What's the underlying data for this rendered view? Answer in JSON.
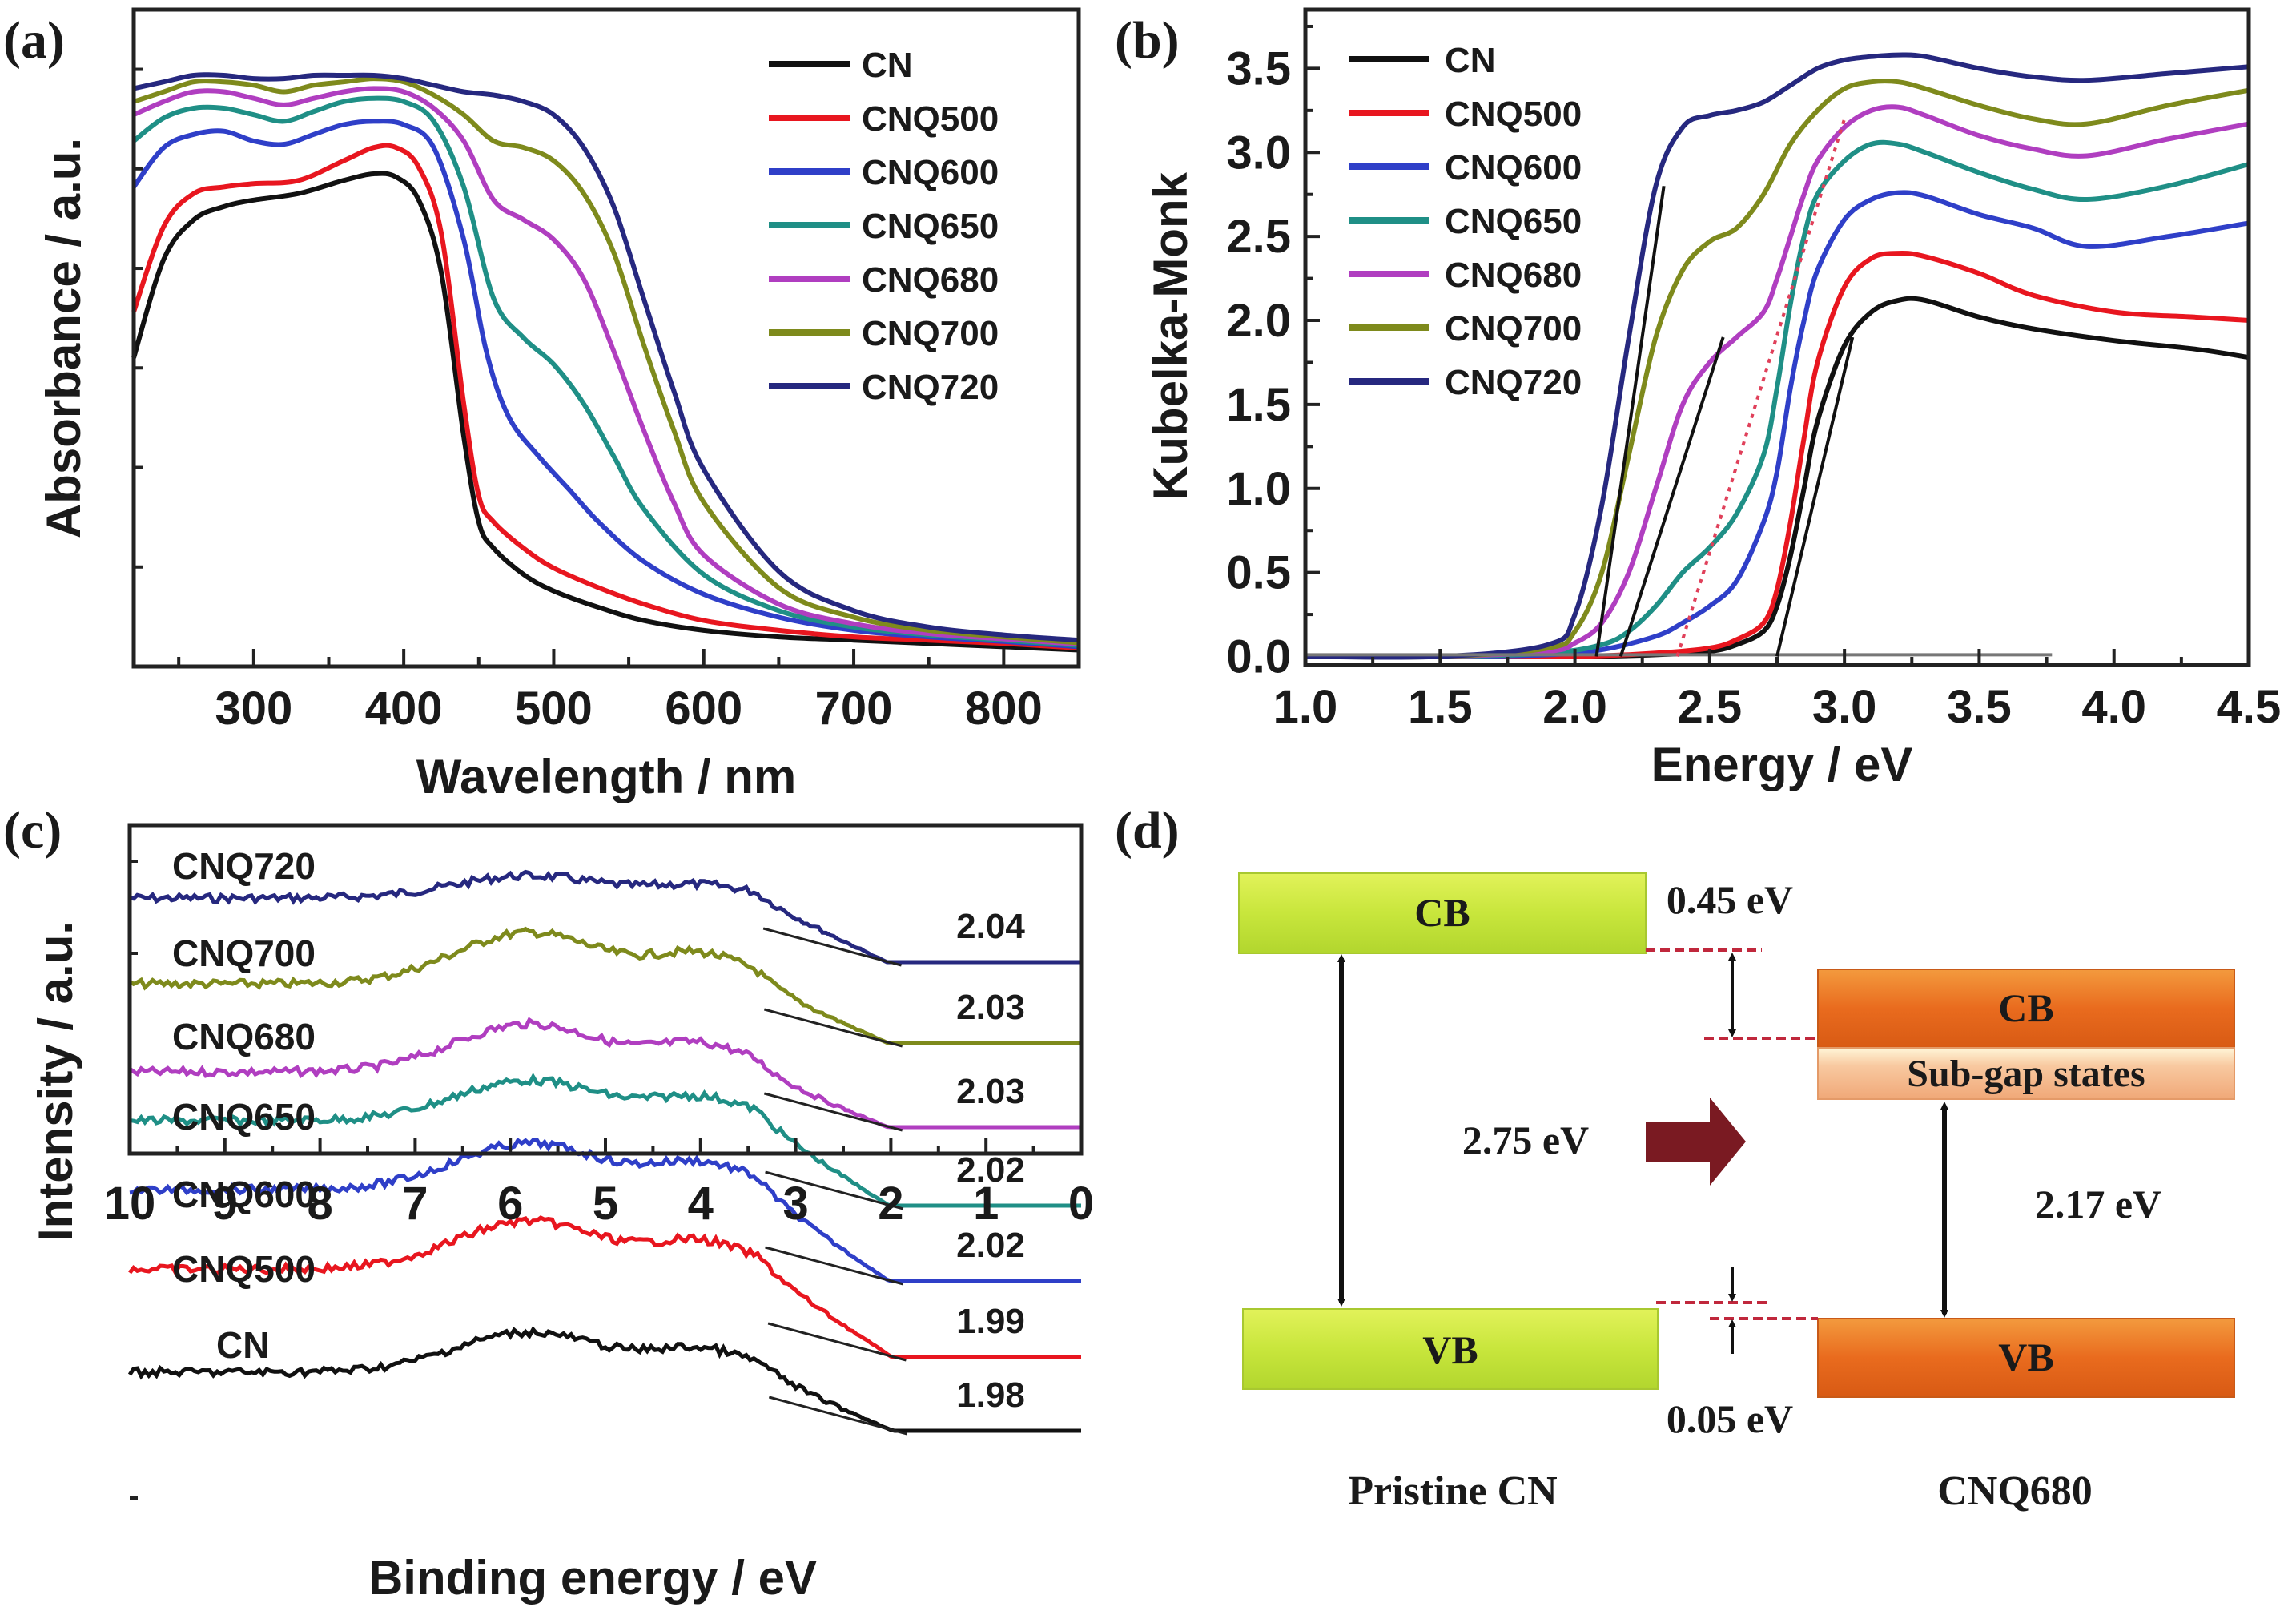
{
  "panels": {
    "a": "(a)",
    "b": "(b)",
    "c": "(c)",
    "d": "(d)"
  },
  "series_colors": {
    "CN": "#111111",
    "CNQ500": "#e8161f",
    "CNQ600": "#2f3fc8",
    "CNQ650": "#1f8f86",
    "CNQ680": "#b03ec0",
    "CNQ700": "#7e8a1c",
    "CNQ720": "#26287f"
  },
  "chart_data": [
    {
      "id": "a",
      "type": "line",
      "title": "",
      "xlabel": "Wavelength / nm",
      "ylabel": "Absorbance / a.u.",
      "xlim": [
        220,
        850
      ],
      "ylim": [
        0,
        1.0
      ],
      "xticks": [
        300,
        400,
        500,
        600,
        700,
        800
      ],
      "show_ytick_labels": false,
      "legend_position": "top-right",
      "legend": [
        "CN",
        "CNQ500",
        "CNQ600",
        "CNQ650",
        "CNQ680",
        "CNQ700",
        "CNQ720"
      ],
      "series": [
        {
          "name": "CN",
          "x": [
            220,
            240,
            260,
            280,
            300,
            330,
            360,
            380,
            395,
            410,
            425,
            440,
            450,
            460,
            480,
            500,
            530,
            560,
            600,
            650,
            700,
            750,
            800,
            850
          ],
          "y": [
            0.47,
            0.62,
            0.68,
            0.7,
            0.71,
            0.72,
            0.74,
            0.75,
            0.745,
            0.71,
            0.6,
            0.35,
            0.22,
            0.18,
            0.14,
            0.115,
            0.09,
            0.07,
            0.055,
            0.045,
            0.04,
            0.035,
            0.03,
            0.025
          ]
        },
        {
          "name": "CNQ500",
          "x": [
            220,
            240,
            260,
            280,
            300,
            330,
            360,
            380,
            395,
            410,
            425,
            440,
            450,
            460,
            480,
            500,
            530,
            560,
            600,
            650,
            700,
            750,
            800,
            850
          ],
          "y": [
            0.54,
            0.67,
            0.72,
            0.73,
            0.735,
            0.74,
            0.77,
            0.79,
            0.79,
            0.76,
            0.66,
            0.4,
            0.26,
            0.22,
            0.18,
            0.15,
            0.12,
            0.095,
            0.07,
            0.055,
            0.045,
            0.04,
            0.035,
            0.028
          ]
        },
        {
          "name": "CNQ600",
          "x": [
            220,
            240,
            260,
            280,
            300,
            320,
            340,
            360,
            380,
            400,
            420,
            440,
            455,
            470,
            490,
            510,
            530,
            560,
            600,
            650,
            700,
            750,
            800,
            850
          ],
          "y": [
            0.73,
            0.79,
            0.81,
            0.815,
            0.8,
            0.795,
            0.81,
            0.825,
            0.83,
            0.825,
            0.79,
            0.65,
            0.48,
            0.38,
            0.32,
            0.27,
            0.22,
            0.16,
            0.11,
            0.075,
            0.055,
            0.045,
            0.038,
            0.03
          ]
        },
        {
          "name": "CNQ650",
          "x": [
            220,
            240,
            260,
            280,
            300,
            320,
            340,
            360,
            380,
            400,
            420,
            440,
            460,
            480,
            500,
            520,
            540,
            560,
            600,
            650,
            700,
            750,
            800,
            850
          ],
          "y": [
            0.8,
            0.835,
            0.85,
            0.85,
            0.84,
            0.83,
            0.845,
            0.86,
            0.865,
            0.86,
            0.83,
            0.73,
            0.56,
            0.5,
            0.46,
            0.4,
            0.32,
            0.24,
            0.14,
            0.085,
            0.06,
            0.048,
            0.04,
            0.032
          ]
        },
        {
          "name": "CNQ680",
          "x": [
            220,
            240,
            260,
            280,
            300,
            320,
            340,
            360,
            380,
            400,
            420,
            440,
            460,
            480,
            500,
            520,
            540,
            560,
            580,
            600,
            650,
            700,
            750,
            800,
            850
          ],
          "y": [
            0.84,
            0.86,
            0.875,
            0.875,
            0.865,
            0.855,
            0.865,
            0.875,
            0.88,
            0.875,
            0.85,
            0.8,
            0.71,
            0.68,
            0.65,
            0.59,
            0.48,
            0.36,
            0.25,
            0.17,
            0.095,
            0.065,
            0.05,
            0.042,
            0.034
          ]
        },
        {
          "name": "CNQ700",
          "x": [
            220,
            240,
            260,
            280,
            300,
            320,
            340,
            360,
            380,
            400,
            420,
            440,
            460,
            480,
            500,
            520,
            540,
            560,
            580,
            600,
            650,
            700,
            750,
            800,
            850
          ],
          "y": [
            0.86,
            0.875,
            0.89,
            0.89,
            0.885,
            0.875,
            0.885,
            0.89,
            0.895,
            0.89,
            0.87,
            0.84,
            0.8,
            0.79,
            0.77,
            0.72,
            0.63,
            0.49,
            0.36,
            0.25,
            0.12,
            0.075,
            0.055,
            0.045,
            0.036
          ]
        },
        {
          "name": "CNQ720",
          "x": [
            220,
            240,
            260,
            280,
            300,
            320,
            340,
            360,
            380,
            400,
            420,
            440,
            460,
            480,
            500,
            520,
            540,
            560,
            580,
            600,
            650,
            700,
            750,
            800,
            850
          ],
          "y": [
            0.88,
            0.89,
            0.9,
            0.9,
            0.895,
            0.895,
            0.9,
            0.9,
            0.9,
            0.895,
            0.885,
            0.875,
            0.87,
            0.86,
            0.84,
            0.79,
            0.7,
            0.56,
            0.42,
            0.3,
            0.145,
            0.085,
            0.06,
            0.048,
            0.04
          ]
        }
      ]
    },
    {
      "id": "b",
      "type": "line",
      "title": "",
      "xlabel": "Energy / eV",
      "ylabel": "Kubelka-Monk",
      "xlim": [
        1.0,
        4.5
      ],
      "ylim": [
        -0.05,
        3.85
      ],
      "xticks": [
        "1.0",
        "1.5",
        "2.0",
        "2.5",
        "3.0",
        "3.5",
        "4.0",
        "4.5"
      ],
      "yticks": [
        "0.0",
        "0.5",
        "1.0",
        "1.5",
        "2.0",
        "2.5",
        "3.0",
        "3.5"
      ],
      "legend_position": "top-left",
      "legend": [
        "CN",
        "CNQ500",
        "CNQ600",
        "CNQ650",
        "CNQ680",
        "CNQ700",
        "CNQ720"
      ],
      "series": [
        {
          "name": "CN",
          "x": [
            1.0,
            1.5,
            2.0,
            2.3,
            2.5,
            2.6,
            2.7,
            2.75,
            2.8,
            2.85,
            2.9,
            3.0,
            3.1,
            3.2,
            3.3,
            3.5,
            3.7,
            4.0,
            4.3,
            4.5
          ],
          "y": [
            0.0,
            0.0,
            0.0,
            0.01,
            0.03,
            0.07,
            0.15,
            0.3,
            0.6,
            1.0,
            1.4,
            1.85,
            2.05,
            2.12,
            2.12,
            2.02,
            1.95,
            1.88,
            1.83,
            1.78
          ]
        },
        {
          "name": "CNQ500",
          "x": [
            1.0,
            1.5,
            2.0,
            2.3,
            2.5,
            2.6,
            2.7,
            2.75,
            2.8,
            2.85,
            2.9,
            3.0,
            3.1,
            3.2,
            3.3,
            3.5,
            3.7,
            4.0,
            4.3,
            4.5
          ],
          "y": [
            0.0,
            0.0,
            0.0,
            0.02,
            0.05,
            0.1,
            0.2,
            0.4,
            0.8,
            1.3,
            1.75,
            2.2,
            2.37,
            2.4,
            2.38,
            2.28,
            2.15,
            2.05,
            2.02,
            2.0
          ]
        },
        {
          "name": "CNQ600",
          "x": [
            1.0,
            1.5,
            1.9,
            2.1,
            2.3,
            2.4,
            2.5,
            2.6,
            2.7,
            2.75,
            2.8,
            2.85,
            2.9,
            3.0,
            3.1,
            3.2,
            3.3,
            3.5,
            3.7,
            3.9,
            4.2,
            4.5
          ],
          "y": [
            0.0,
            0.0,
            0.01,
            0.04,
            0.12,
            0.2,
            0.3,
            0.45,
            0.8,
            1.1,
            1.6,
            2.0,
            2.3,
            2.6,
            2.72,
            2.76,
            2.74,
            2.63,
            2.55,
            2.44,
            2.5,
            2.58
          ]
        },
        {
          "name": "CNQ650",
          "x": [
            1.0,
            1.5,
            1.9,
            2.1,
            2.2,
            2.3,
            2.4,
            2.5,
            2.6,
            2.7,
            2.75,
            2.8,
            2.85,
            2.9,
            3.0,
            3.1,
            3.2,
            3.3,
            3.5,
            3.7,
            3.9,
            4.2,
            4.5
          ],
          "y": [
            0.0,
            0.0,
            0.02,
            0.07,
            0.15,
            0.3,
            0.5,
            0.65,
            0.85,
            1.2,
            1.6,
            2.1,
            2.5,
            2.75,
            2.95,
            3.05,
            3.05,
            3.0,
            2.88,
            2.78,
            2.72,
            2.8,
            2.93
          ]
        },
        {
          "name": "CNQ680",
          "x": [
            1.0,
            1.5,
            1.9,
            2.0,
            2.1,
            2.2,
            2.3,
            2.4,
            2.5,
            2.6,
            2.7,
            2.75,
            2.8,
            2.85,
            2.9,
            3.0,
            3.1,
            3.2,
            3.3,
            3.5,
            3.7,
            3.9,
            4.2,
            4.5
          ],
          "y": [
            0.0,
            0.0,
            0.03,
            0.08,
            0.2,
            0.5,
            1.0,
            1.5,
            1.75,
            1.9,
            2.05,
            2.25,
            2.5,
            2.75,
            2.95,
            3.15,
            3.25,
            3.27,
            3.22,
            3.1,
            3.02,
            2.98,
            3.08,
            3.17
          ]
        },
        {
          "name": "CNQ700",
          "x": [
            1.0,
            1.5,
            1.9,
            2.0,
            2.1,
            2.2,
            2.3,
            2.4,
            2.5,
            2.6,
            2.7,
            2.8,
            2.9,
            3.0,
            3.1,
            3.2,
            3.3,
            3.5,
            3.7,
            3.9,
            4.2,
            4.5
          ],
          "y": [
            0.0,
            0.0,
            0.05,
            0.15,
            0.5,
            1.2,
            1.9,
            2.3,
            2.47,
            2.55,
            2.75,
            3.05,
            3.25,
            3.38,
            3.42,
            3.42,
            3.38,
            3.28,
            3.2,
            3.17,
            3.28,
            3.37
          ]
        },
        {
          "name": "CNQ720",
          "x": [
            1.0,
            1.5,
            1.9,
            2.0,
            2.1,
            2.2,
            2.3,
            2.4,
            2.5,
            2.6,
            2.7,
            2.8,
            2.9,
            3.0,
            3.1,
            3.2,
            3.3,
            3.5,
            3.7,
            3.9,
            4.2,
            4.5
          ],
          "y": [
            0.0,
            0.0,
            0.07,
            0.25,
            0.9,
            1.9,
            2.8,
            3.15,
            3.22,
            3.25,
            3.3,
            3.4,
            3.5,
            3.55,
            3.57,
            3.58,
            3.57,
            3.5,
            3.45,
            3.43,
            3.47,
            3.51
          ]
        }
      ],
      "annotations": {
        "baseline": {
          "x": [
            1.0,
            3.77
          ],
          "y": [
            0.01,
            0.01
          ]
        },
        "tangent_lines": [
          {
            "x": [
              2.08,
              2.33
            ],
            "y": [
              0.0,
              2.8
            ]
          },
          {
            "x": [
              2.17,
              2.55
            ],
            "y": [
              0.0,
              1.9
            ]
          },
          {
            "x": [
              2.75,
              3.03
            ],
            "y": [
              0.0,
              1.9
            ]
          }
        ],
        "dotted_tangent": {
          "x": [
            2.38,
            3.0
          ],
          "y": [
            0.0,
            3.2
          ],
          "color": "#e0405a"
        }
      }
    },
    {
      "id": "c",
      "type": "line",
      "title": "",
      "xlabel": "Binding energy / eV",
      "ylabel": "Intensity / a.u.",
      "xlim": [
        10,
        0
      ],
      "xticks": [
        "10",
        "9",
        "8",
        "7",
        "6",
        "5",
        "4",
        "3",
        "2",
        "1",
        "0"
      ],
      "show_ytick_labels": false,
      "series_labels": [
        "CNQ720",
        "CNQ700",
        "CNQ680",
        "CNQ650",
        "CNQ600",
        "CNQ500",
        "CN"
      ],
      "vb_edge_values": [
        "2.04",
        "2.03",
        "2.03",
        "2.02",
        "2.02",
        "1.99",
        "1.98"
      ],
      "vb_edges_eV": [
        2.04,
        2.03,
        2.03,
        2.02,
        2.02,
        1.99,
        1.98
      ]
    }
  ],
  "diagram": {
    "left_cb": "CB",
    "left_vb": "VB",
    "right_cb": "CB",
    "right_subgap": "Sub-gap states",
    "right_vb": "VB",
    "gap_left": "2.75 eV",
    "gap_right": "2.17 eV",
    "cb_shift": "0.45 eV",
    "vb_shift": "0.05 eV",
    "left_caption": "Pristine CN",
    "right_caption": "CNQ680",
    "colors": {
      "green_band": "#c4e43a",
      "orange_band": "#e96b1e",
      "subgap_band": "#f4b48a",
      "arrow": "#7a1a22",
      "dash": "#c0283c"
    }
  }
}
